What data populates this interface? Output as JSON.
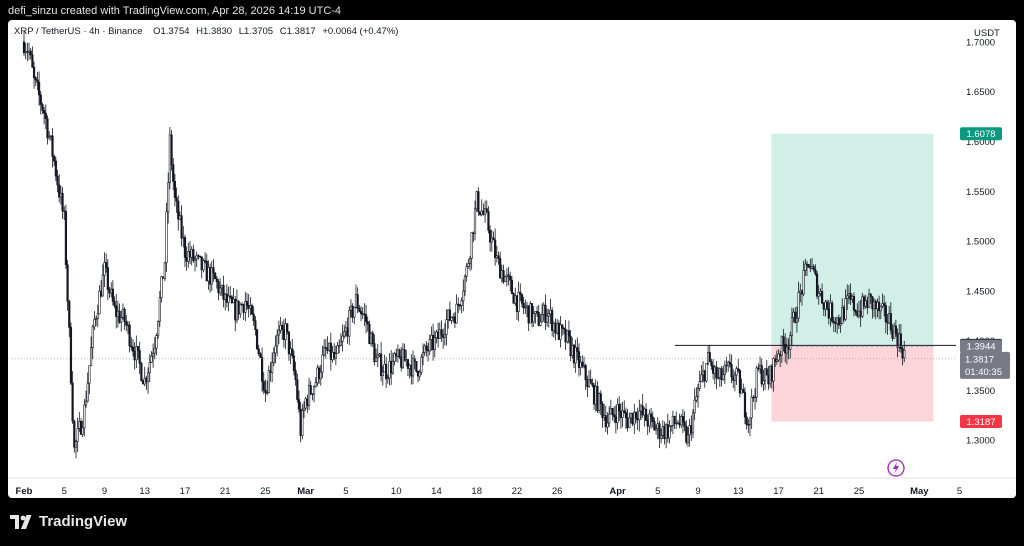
{
  "header": {
    "creator_line": "defi_sinzu created with TradingView.com, Apr 28, 2026 14:19 UTC-4"
  },
  "legend": {
    "symbol": "XRP / TetherUS · 4h · Binance",
    "o_label": "O",
    "o": "1.3754",
    "h_label": "H",
    "h": "1.3830",
    "l_label": "L",
    "l": "1.3705",
    "c_label": "C",
    "c": "1.3817",
    "change": "+0.0064 (+0.47%)"
  },
  "footer": {
    "brand": "TradingView"
  },
  "colors": {
    "background": "#ffffff",
    "candle": "#131722",
    "profit_zone": "#d1efe7",
    "loss_zone": "#fbd5d9",
    "target_tag": "#089981",
    "stop_tag": "#f23645",
    "entry_tag": "#131722",
    "price_tag": "#787b86"
  },
  "chart_data": {
    "type": "candlestick",
    "symbol": "XRP / TetherUS",
    "interval": "4h",
    "exchange": "Binance",
    "y_unit": "USDT",
    "ylim": [
      1.262,
      1.722
    ],
    "y_ticks": [
      "1.7000",
      "1.6500",
      "1.6000",
      "1.5500",
      "1.5000",
      "1.4500",
      "1.4000",
      "1.3500",
      "1.3000"
    ],
    "x_ticks": [
      {
        "label": "Feb",
        "bold": true,
        "day": 1
      },
      {
        "label": "5",
        "day": 5
      },
      {
        "label": "9",
        "day": 9
      },
      {
        "label": "13",
        "day": 13
      },
      {
        "label": "17",
        "day": 17
      },
      {
        "label": "21",
        "day": 21
      },
      {
        "label": "25",
        "day": 25
      },
      {
        "label": "Mar",
        "bold": true,
        "day": 29
      },
      {
        "label": "5",
        "day": 33
      },
      {
        "label": "10",
        "day": 38
      },
      {
        "label": "14",
        "day": 42
      },
      {
        "label": "18",
        "day": 46
      },
      {
        "label": "22",
        "day": 50
      },
      {
        "label": "26",
        "day": 54
      },
      {
        "label": "Apr",
        "bold": true,
        "day": 60
      },
      {
        "label": "5",
        "day": 64
      },
      {
        "label": "9",
        "day": 68
      },
      {
        "label": "13",
        "day": 72
      },
      {
        "label": "17",
        "day": 76
      },
      {
        "label": "21",
        "day": 80
      },
      {
        "label": "25",
        "day": 84
      },
      {
        "label": "May",
        "bold": true,
        "day": 90
      },
      {
        "label": "5",
        "day": 94
      }
    ],
    "price_path": [
      [
        0,
        1.7
      ],
      [
        0.5,
        1.69
      ],
      [
        1,
        1.66
      ],
      [
        2,
        1.63
      ],
      [
        3,
        1.58
      ],
      [
        4,
        1.52
      ],
      [
        5,
        1.29
      ],
      [
        6,
        1.33
      ],
      [
        7,
        1.42
      ],
      [
        8,
        1.47
      ],
      [
        9,
        1.43
      ],
      [
        10,
        1.42
      ],
      [
        11,
        1.39
      ],
      [
        12,
        1.36
      ],
      [
        13,
        1.4
      ],
      [
        14,
        1.48
      ],
      [
        14.5,
        1.6
      ],
      [
        15,
        1.54
      ],
      [
        16,
        1.49
      ],
      [
        17,
        1.48
      ],
      [
        18,
        1.47
      ],
      [
        19,
        1.46
      ],
      [
        20,
        1.44
      ],
      [
        21,
        1.43
      ],
      [
        22,
        1.44
      ],
      [
        23,
        1.41
      ],
      [
        24,
        1.35
      ],
      [
        25,
        1.4
      ],
      [
        26,
        1.41
      ],
      [
        27,
        1.36
      ],
      [
        27.5,
        1.31
      ],
      [
        28,
        1.34
      ],
      [
        29,
        1.36
      ],
      [
        30,
        1.39
      ],
      [
        31,
        1.38
      ],
      [
        32,
        1.41
      ],
      [
        33,
        1.44
      ],
      [
        34,
        1.42
      ],
      [
        35,
        1.38
      ],
      [
        36,
        1.37
      ],
      [
        37,
        1.38
      ],
      [
        38,
        1.38
      ],
      [
        39,
        1.37
      ],
      [
        40,
        1.39
      ],
      [
        41,
        1.4
      ],
      [
        42,
        1.42
      ],
      [
        43,
        1.43
      ],
      [
        44,
        1.47
      ],
      [
        45,
        1.54
      ],
      [
        46,
        1.52
      ],
      [
        47,
        1.48
      ],
      [
        48,
        1.46
      ],
      [
        49,
        1.44
      ],
      [
        50,
        1.43
      ],
      [
        51,
        1.42
      ],
      [
        52,
        1.43
      ],
      [
        53,
        1.41
      ],
      [
        54,
        1.4
      ],
      [
        55,
        1.38
      ],
      [
        56,
        1.36
      ],
      [
        57,
        1.34
      ],
      [
        58,
        1.32
      ],
      [
        59,
        1.33
      ],
      [
        60,
        1.32
      ],
      [
        61,
        1.33
      ],
      [
        62,
        1.32
      ],
      [
        63,
        1.31
      ],
      [
        64,
        1.31
      ],
      [
        65,
        1.32
      ],
      [
        66,
        1.3
      ],
      [
        67,
        1.35
      ],
      [
        68,
        1.38
      ],
      [
        69,
        1.36
      ],
      [
        70,
        1.37
      ],
      [
        71,
        1.36
      ],
      [
        72,
        1.32
      ],
      [
        73,
        1.37
      ],
      [
        74,
        1.36
      ],
      [
        75,
        1.39
      ],
      [
        76,
        1.4
      ],
      [
        77,
        1.44
      ],
      [
        78,
        1.48
      ],
      [
        79,
        1.45
      ],
      [
        80,
        1.43
      ],
      [
        81,
        1.42
      ],
      [
        82,
        1.44
      ],
      [
        83,
        1.43
      ],
      [
        84,
        1.44
      ],
      [
        85,
        1.43
      ],
      [
        86,
        1.42
      ],
      [
        87,
        1.4
      ],
      [
        87.6,
        1.385
      ]
    ],
    "long_position": {
      "start_day": 75.3,
      "end_day": 91.4,
      "target": 1.6078,
      "entry": 1.3944,
      "stop": 1.3187
    },
    "horizontal_line": {
      "price": 1.3952,
      "start_day": 65.7
    },
    "current_price": 1.3817,
    "candle_countdown": "01:40:35",
    "tags": {
      "unit": "USDT",
      "target": "1.6078",
      "hline": "1.3952",
      "entry": "1.3944",
      "last": "1.3817",
      "countdown": "01:40:35",
      "stop": "1.3187"
    }
  }
}
